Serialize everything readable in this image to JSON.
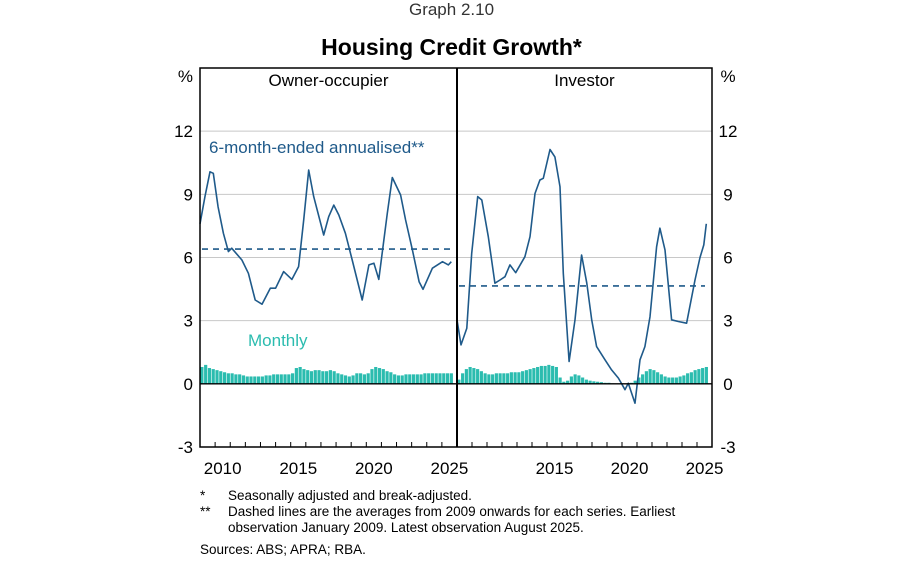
{
  "graph_number": "Graph 2.10",
  "chart_data": {
    "type": "line",
    "title": "Housing Credit Growth*",
    "unit_label": "%",
    "ylim": [
      -3,
      15
    ],
    "yticks": [
      -3,
      0,
      3,
      6,
      9,
      12
    ],
    "ytick_labels": [
      "-3",
      "0",
      "3",
      "6",
      "9",
      "12"
    ],
    "grid": true,
    "colors": {
      "six_month": "#1f5a8a",
      "monthly": "#2bbcaf",
      "grid": "#c8c8c8"
    },
    "series_labels": {
      "six_month": "6-month-ended annualised**",
      "monthly": "Monthly"
    },
    "panels": [
      {
        "title": "Owner-occupier",
        "xlim": [
          2009,
          2026
        ],
        "xtick_labels": [
          "2010",
          "2015",
          "2020",
          "2025"
        ],
        "xtick_label_years": [
          2010,
          2015,
          2020,
          2025
        ],
        "six_month_annualised": [
          [
            2009.0,
            7.6
          ],
          [
            2009.33,
            8.9
          ],
          [
            2009.66,
            10.07
          ],
          [
            2009.88,
            10.0
          ],
          [
            2010.2,
            8.4
          ],
          [
            2010.55,
            7.15
          ],
          [
            2010.88,
            6.28
          ],
          [
            2011.1,
            6.44
          ],
          [
            2011.77,
            5.88
          ],
          [
            2012.2,
            5.25
          ],
          [
            2012.65,
            3.98
          ],
          [
            2013.1,
            3.78
          ],
          [
            2013.65,
            4.54
          ],
          [
            2014.0,
            4.54
          ],
          [
            2014.53,
            5.33
          ],
          [
            2015.08,
            4.96
          ],
          [
            2015.52,
            5.57
          ],
          [
            2015.86,
            7.78
          ],
          [
            2016.19,
            10.15
          ],
          [
            2016.52,
            8.89
          ],
          [
            2017.18,
            7.07
          ],
          [
            2017.51,
            7.94
          ],
          [
            2017.85,
            8.49
          ],
          [
            2018.18,
            8.02
          ],
          [
            2018.62,
            7.15
          ],
          [
            2019.07,
            5.88
          ],
          [
            2019.73,
            3.98
          ],
          [
            2020.17,
            5.65
          ],
          [
            2020.5,
            5.73
          ],
          [
            2020.83,
            4.96
          ],
          [
            2021.39,
            8.1
          ],
          [
            2021.72,
            9.8
          ],
          [
            2022.27,
            8.97
          ],
          [
            2022.6,
            7.78
          ],
          [
            2023.05,
            6.36
          ],
          [
            2023.49,
            4.85
          ],
          [
            2023.75,
            4.49
          ],
          [
            2024.37,
            5.49
          ],
          [
            2025.04,
            5.8
          ],
          [
            2025.43,
            5.65
          ],
          [
            2025.62,
            5.8
          ]
        ],
        "six_month_average": 6.4,
        "monthly": [
          0.8,
          0.9,
          0.75,
          0.7,
          0.65,
          0.6,
          0.55,
          0.5,
          0.5,
          0.45,
          0.45,
          0.4,
          0.35,
          0.35,
          0.35,
          0.35,
          0.35,
          0.4,
          0.4,
          0.45,
          0.45,
          0.45,
          0.45,
          0.45,
          0.5,
          0.75,
          0.8,
          0.7,
          0.65,
          0.6,
          0.65,
          0.65,
          0.6,
          0.6,
          0.65,
          0.6,
          0.5,
          0.45,
          0.4,
          0.35,
          0.4,
          0.5,
          0.5,
          0.45,
          0.5,
          0.7,
          0.8,
          0.75,
          0.7,
          0.6,
          0.55,
          0.45,
          0.4,
          0.4,
          0.45,
          0.45,
          0.45,
          0.45,
          0.45,
          0.5,
          0.5,
          0.5,
          0.5,
          0.5,
          0.5,
          0.5,
          0.5
        ]
      },
      {
        "title": "Investor",
        "xlim": [
          2009,
          2026
        ],
        "xtick_labels": [
          "2015",
          "2020",
          "2025"
        ],
        "xtick_label_years": [
          2015,
          2020,
          2025
        ],
        "six_month_annualised": [
          [
            2009.0,
            3.04
          ],
          [
            2009.27,
            1.85
          ],
          [
            2009.65,
            2.64
          ],
          [
            2009.98,
            6.2
          ],
          [
            2010.38,
            8.89
          ],
          [
            2010.65,
            8.73
          ],
          [
            2011.09,
            6.99
          ],
          [
            2011.53,
            4.78
          ],
          [
            2011.87,
            4.93
          ],
          [
            2012.2,
            5.09
          ],
          [
            2012.53,
            5.65
          ],
          [
            2012.91,
            5.28
          ],
          [
            2013.53,
            6.04
          ],
          [
            2013.87,
            6.99
          ],
          [
            2014.2,
            9.04
          ],
          [
            2014.53,
            9.68
          ],
          [
            2014.75,
            9.76
          ],
          [
            2015.2,
            11.13
          ],
          [
            2015.53,
            10.78
          ],
          [
            2015.87,
            9.36
          ],
          [
            2016.09,
            5.25
          ],
          [
            2016.47,
            1.06
          ],
          [
            2016.87,
            3.04
          ],
          [
            2017.31,
            6.12
          ],
          [
            2017.65,
            4.78
          ],
          [
            2017.98,
            3.04
          ],
          [
            2018.31,
            1.77
          ],
          [
            2018.87,
            1.14
          ],
          [
            2019.31,
            0.66
          ],
          [
            2019.76,
            0.27
          ],
          [
            2020.2,
            -0.28
          ],
          [
            2020.42,
            0.03
          ],
          [
            2020.87,
            -0.92
          ],
          [
            2021.2,
            1.14
          ],
          [
            2021.53,
            1.77
          ],
          [
            2021.87,
            3.19
          ],
          [
            2022.31,
            6.51
          ],
          [
            2022.53,
            7.39
          ],
          [
            2022.87,
            6.36
          ],
          [
            2023.31,
            3.04
          ],
          [
            2023.75,
            2.96
          ],
          [
            2024.31,
            2.88
          ],
          [
            2024.87,
            4.93
          ],
          [
            2025.2,
            6.0
          ],
          [
            2025.45,
            6.6
          ],
          [
            2025.62,
            7.6
          ]
        ],
        "six_month_average": 4.65,
        "monthly": [
          0.2,
          0.5,
          0.7,
          0.8,
          0.75,
          0.7,
          0.6,
          0.5,
          0.45,
          0.45,
          0.5,
          0.5,
          0.5,
          0.5,
          0.55,
          0.55,
          0.55,
          0.6,
          0.65,
          0.7,
          0.75,
          0.8,
          0.85,
          0.85,
          0.9,
          0.85,
          0.8,
          0.3,
          0.1,
          0.15,
          0.35,
          0.45,
          0.4,
          0.3,
          0.2,
          0.15,
          0.12,
          0.1,
          0.08,
          0.05,
          0.05,
          0.02,
          0.0,
          -0.02,
          0.0,
          0.0,
          0.05,
          0.15,
          0.3,
          0.45,
          0.6,
          0.7,
          0.65,
          0.55,
          0.45,
          0.35,
          0.3,
          0.3,
          0.3,
          0.35,
          0.4,
          0.5,
          0.55,
          0.65,
          0.7,
          0.75,
          0.8
        ]
      }
    ]
  },
  "notes": [
    {
      "marker": "*",
      "text": "Seasonally adjusted and break-adjusted."
    },
    {
      "marker": "**",
      "text": "Dashed lines are the averages from 2009 onwards for each series. Earliest observation January 2009. Latest observation August 2025."
    }
  ],
  "sources": "Sources: ABS; APRA; RBA."
}
